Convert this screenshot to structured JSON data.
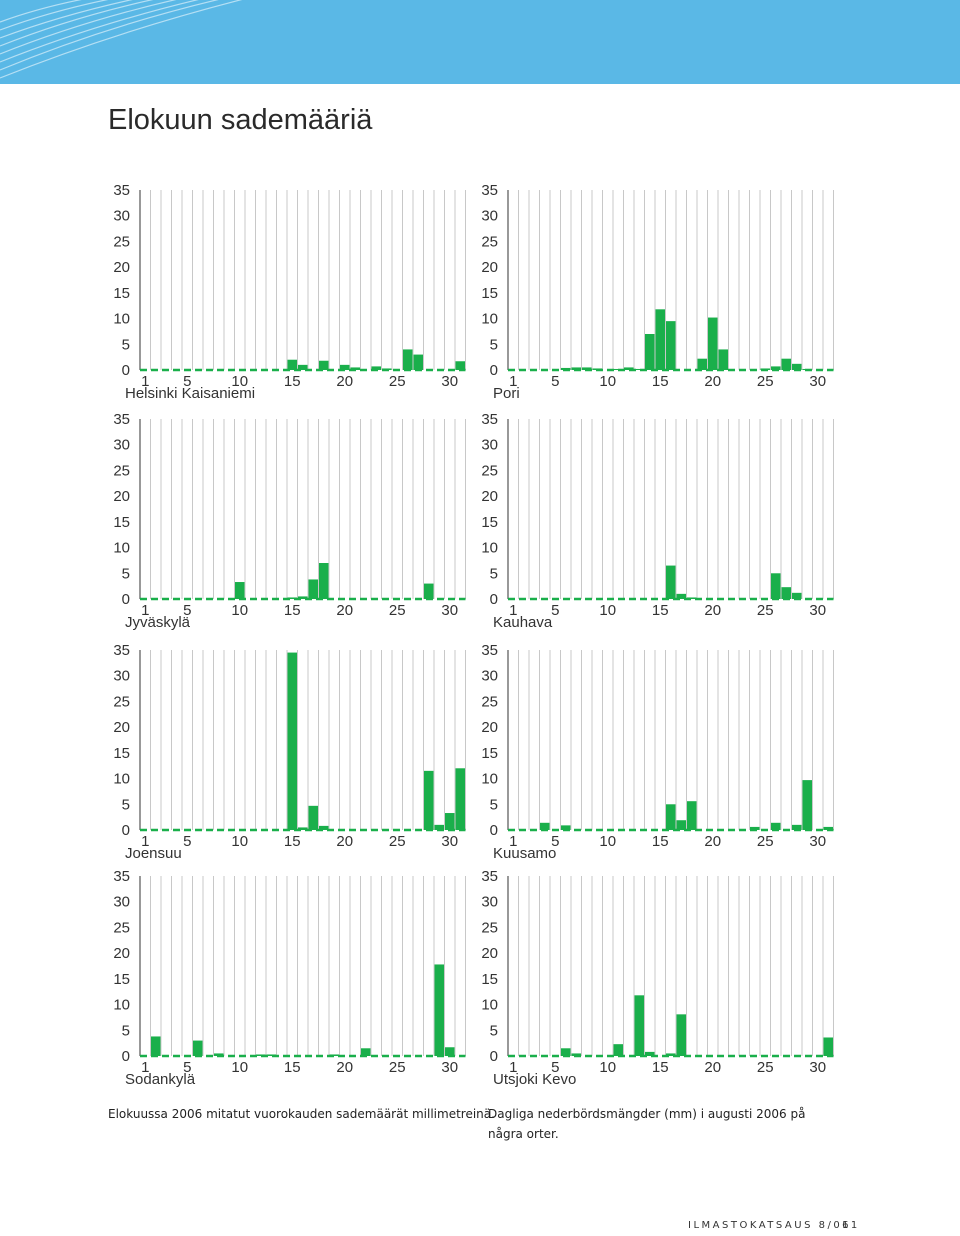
{
  "page": {
    "title": "Elokuun sademääriä",
    "caption_fi": "Elokuussa 2006 mitatut vuorokauden sademäärät millimetreinä.",
    "caption_sv": "Dagliga nederbördsmängder (mm) i augusti 2006 på några orter.",
    "footer_left": "ILMASTOKATSAUS 8/06",
    "footer_right": "11",
    "bar_color": "#1aaf4b",
    "banner_color": "#5ab8e6"
  },
  "chart_data": [
    {
      "type": "bar",
      "title": "Helsinki Kaisaniemi",
      "ylim": [
        0,
        35
      ],
      "yticks": [
        0,
        5,
        10,
        15,
        20,
        25,
        30,
        35
      ],
      "xticks": [
        1,
        5,
        10,
        15,
        20,
        25,
        30
      ],
      "x": [
        1,
        2,
        3,
        4,
        5,
        6,
        7,
        8,
        9,
        10,
        11,
        12,
        13,
        14,
        15,
        16,
        17,
        18,
        19,
        20,
        21,
        22,
        23,
        24,
        25,
        26,
        27,
        28,
        29,
        30,
        31
      ],
      "values": [
        0,
        0,
        0,
        0,
        0,
        0,
        0,
        0,
        0,
        0,
        0,
        0,
        0,
        0,
        2,
        1,
        0,
        1.8,
        0,
        1,
        0.5,
        0,
        0.7,
        0.3,
        0,
        4,
        3,
        0,
        0,
        0,
        1.7
      ]
    },
    {
      "type": "bar",
      "title": "Pori",
      "ylim": [
        0,
        35
      ],
      "yticks": [
        0,
        5,
        10,
        15,
        20,
        25,
        30,
        35
      ],
      "xticks": [
        1,
        5,
        10,
        15,
        20,
        25,
        30
      ],
      "x": [
        1,
        2,
        3,
        4,
        5,
        6,
        7,
        8,
        9,
        10,
        11,
        12,
        13,
        14,
        15,
        16,
        17,
        18,
        19,
        20,
        21,
        22,
        23,
        24,
        25,
        26,
        27,
        28,
        29,
        30,
        31
      ],
      "values": [
        0,
        0,
        0,
        0,
        0,
        0.4,
        0.5,
        0.5,
        0.3,
        0,
        0.2,
        0.5,
        0.2,
        7,
        11.8,
        9.5,
        0,
        0,
        2.2,
        10.2,
        4,
        0,
        0,
        0,
        0.3,
        0.7,
        2.2,
        1.2,
        0.2,
        0,
        0
      ]
    },
    {
      "type": "bar",
      "title": "Jyväskylä",
      "ylim": [
        0,
        35
      ],
      "yticks": [
        0,
        5,
        10,
        15,
        20,
        25,
        30,
        35
      ],
      "xticks": [
        1,
        5,
        10,
        15,
        20,
        25,
        30
      ],
      "x": [
        1,
        2,
        3,
        4,
        5,
        6,
        7,
        8,
        9,
        10,
        11,
        12,
        13,
        14,
        15,
        16,
        17,
        18,
        19,
        20,
        21,
        22,
        23,
        24,
        25,
        26,
        27,
        28,
        29,
        30,
        31
      ],
      "values": [
        0,
        0,
        0,
        0,
        0,
        0,
        0,
        0,
        0,
        3.3,
        0,
        0,
        0,
        0,
        0.3,
        0.5,
        3.8,
        7,
        0,
        0,
        0,
        0,
        0,
        0,
        0,
        0,
        0,
        3,
        0,
        0,
        0
      ]
    },
    {
      "type": "bar",
      "title": "Kauhava",
      "ylim": [
        0,
        35
      ],
      "yticks": [
        0,
        5,
        10,
        15,
        20,
        25,
        30,
        35
      ],
      "xticks": [
        1,
        5,
        10,
        15,
        20,
        25,
        30
      ],
      "x": [
        1,
        2,
        3,
        4,
        5,
        6,
        7,
        8,
        9,
        10,
        11,
        12,
        13,
        14,
        15,
        16,
        17,
        18,
        19,
        20,
        21,
        22,
        23,
        24,
        25,
        26,
        27,
        28,
        29,
        30,
        31
      ],
      "values": [
        0,
        0,
        0,
        0,
        0,
        0,
        0,
        0,
        0,
        0,
        0,
        0,
        0,
        0,
        0,
        6.5,
        1,
        0.3,
        0,
        0,
        0,
        0,
        0,
        0,
        0,
        5,
        2.3,
        1.2,
        0,
        0,
        0
      ]
    },
    {
      "type": "bar",
      "title": "Joensuu",
      "ylim": [
        0,
        35
      ],
      "yticks": [
        0,
        5,
        10,
        15,
        20,
        25,
        30,
        35
      ],
      "xticks": [
        1,
        5,
        10,
        15,
        20,
        25,
        30
      ],
      "x": [
        1,
        2,
        3,
        4,
        5,
        6,
        7,
        8,
        9,
        10,
        11,
        12,
        13,
        14,
        15,
        16,
        17,
        18,
        19,
        20,
        21,
        22,
        23,
        24,
        25,
        26,
        27,
        28,
        29,
        30,
        31
      ],
      "values": [
        0,
        0,
        0,
        0,
        0,
        0,
        0,
        0,
        0,
        0,
        0,
        0,
        0,
        0,
        34.5,
        0.5,
        4.7,
        0.8,
        0,
        0,
        0,
        0,
        0,
        0,
        0,
        0,
        0,
        11.5,
        1,
        3.3,
        12
      ]
    },
    {
      "type": "bar",
      "title": "Kuusamo",
      "ylim": [
        0,
        35
      ],
      "yticks": [
        0,
        5,
        10,
        15,
        20,
        25,
        30,
        35
      ],
      "xticks": [
        1,
        5,
        10,
        15,
        20,
        25,
        30
      ],
      "x": [
        1,
        2,
        3,
        4,
        5,
        6,
        7,
        8,
        9,
        10,
        11,
        12,
        13,
        14,
        15,
        16,
        17,
        18,
        19,
        20,
        21,
        22,
        23,
        24,
        25,
        26,
        27,
        28,
        29,
        30,
        31
      ],
      "values": [
        0,
        0,
        0,
        1.4,
        0,
        0.9,
        0,
        0,
        0,
        0,
        0,
        0,
        0,
        0,
        0,
        5,
        1.9,
        5.6,
        0,
        0,
        0,
        0,
        0,
        0.6,
        0,
        1.4,
        0,
        1,
        9.7,
        0,
        0.6
      ]
    },
    {
      "type": "bar",
      "title": "Sodankylä",
      "ylim": [
        0,
        35
      ],
      "yticks": [
        0,
        5,
        10,
        15,
        20,
        25,
        30,
        35
      ],
      "xticks": [
        1,
        5,
        10,
        15,
        20,
        25,
        30
      ],
      "x": [
        1,
        2,
        3,
        4,
        5,
        6,
        7,
        8,
        9,
        10,
        11,
        12,
        13,
        14,
        15,
        16,
        17,
        18,
        19,
        20,
        21,
        22,
        23,
        24,
        25,
        26,
        27,
        28,
        29,
        30,
        31
      ],
      "values": [
        0,
        3.8,
        0,
        0,
        0,
        3,
        0,
        0.5,
        0,
        0,
        0,
        0.3,
        0.3,
        0,
        0,
        0,
        0,
        0,
        0.3,
        0,
        0,
        1.5,
        0,
        0,
        0,
        0,
        0,
        0,
        17.8,
        1.7,
        0
      ]
    },
    {
      "type": "bar",
      "title": "Utsjoki Kevo",
      "ylim": [
        0,
        35
      ],
      "yticks": [
        0,
        5,
        10,
        15,
        20,
        25,
        30,
        35
      ],
      "xticks": [
        1,
        5,
        10,
        15,
        20,
        25,
        30
      ],
      "x": [
        1,
        2,
        3,
        4,
        5,
        6,
        7,
        8,
        9,
        10,
        11,
        12,
        13,
        14,
        15,
        16,
        17,
        18,
        19,
        20,
        21,
        22,
        23,
        24,
        25,
        26,
        27,
        28,
        29,
        30,
        31
      ],
      "values": [
        0,
        0,
        0,
        0,
        0,
        1.5,
        0.5,
        0,
        0,
        0,
        2.3,
        0,
        11.8,
        0.8,
        0,
        0.5,
        8.1,
        0,
        0,
        0,
        0,
        0,
        0,
        0,
        0,
        0,
        0,
        0,
        0,
        0,
        3.6
      ]
    }
  ]
}
